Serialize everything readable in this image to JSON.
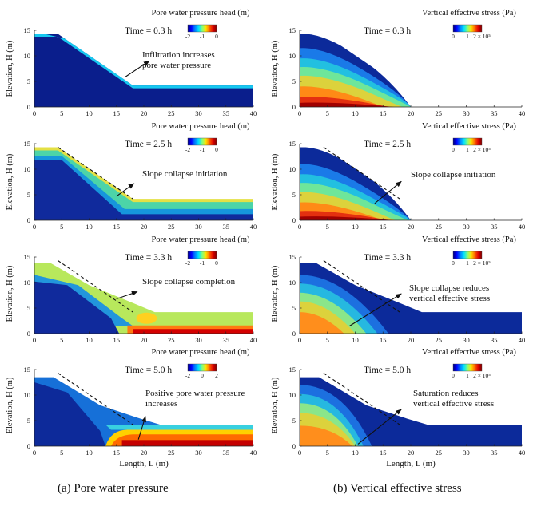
{
  "figure": {
    "y_axis_label": "Elevation, H (m)",
    "x_axis_label": "Length, L (m)",
    "x_ticks": [
      "0",
      "5",
      "10",
      "15",
      "20",
      "25",
      "30",
      "35",
      "40"
    ],
    "y_ticks": [
      "0",
      "5",
      "10",
      "15"
    ],
    "xlim": [
      0,
      40
    ],
    "ylim": [
      0,
      15
    ],
    "colormap": [
      "#00007f",
      "#0000ff",
      "#0080ff",
      "#00e0ff",
      "#7fff80",
      "#ffe600",
      "#ff6a00",
      "#e00000",
      "#7f0000"
    ],
    "columns": [
      {
        "id": "a",
        "colorbar_title": "Pore water pressure head (m)",
        "caption": "(a)  Pore water pressure",
        "panels": [
          {
            "time": "Time = 0.3 h",
            "annotation": [
              "Infiltration increases",
              "pore water pressure"
            ],
            "colorbar_ticks": [
              "-2",
              "-1",
              "0"
            ]
          },
          {
            "time": "Time = 2.5 h",
            "annotation": [
              "Slope collapse initiation"
            ],
            "colorbar_ticks": [
              "-2",
              "-1",
              "0"
            ]
          },
          {
            "time": "Time = 3.3 h",
            "annotation": [
              "Slope collapse completion"
            ],
            "colorbar_ticks": [
              "-2",
              "-1",
              "0"
            ]
          },
          {
            "time": "Time = 5.0 h",
            "annotation": [
              "Positive pore water pressure",
              "increases"
            ],
            "colorbar_ticks": [
              "-2",
              "0",
              "2"
            ]
          }
        ]
      },
      {
        "id": "b",
        "colorbar_title": "Vertical effective stress (Pa)",
        "caption": "(b)  Vertical effective stress",
        "panels": [
          {
            "time": "Time = 0.3 h",
            "annotation": [],
            "colorbar_ticks": [
              "0",
              "1",
              "2 × 10⁵"
            ]
          },
          {
            "time": "Time = 2.5 h",
            "annotation": [
              "Slope collapse initiation"
            ],
            "colorbar_ticks": [
              "0",
              "1",
              "2 × 10⁵"
            ]
          },
          {
            "time": "Time = 3.3 h",
            "annotation": [
              "Slope collapse reduces",
              "vertical effective stress"
            ],
            "colorbar_ticks": [
              "0",
              "1",
              "2 × 10⁵"
            ]
          },
          {
            "time": "Time = 5.0 h",
            "annotation": [
              "Saturation reduces",
              "vertical effective stress"
            ],
            "colorbar_ticks": [
              "0",
              "1",
              "2 × 10⁵"
            ]
          }
        ]
      }
    ]
  }
}
